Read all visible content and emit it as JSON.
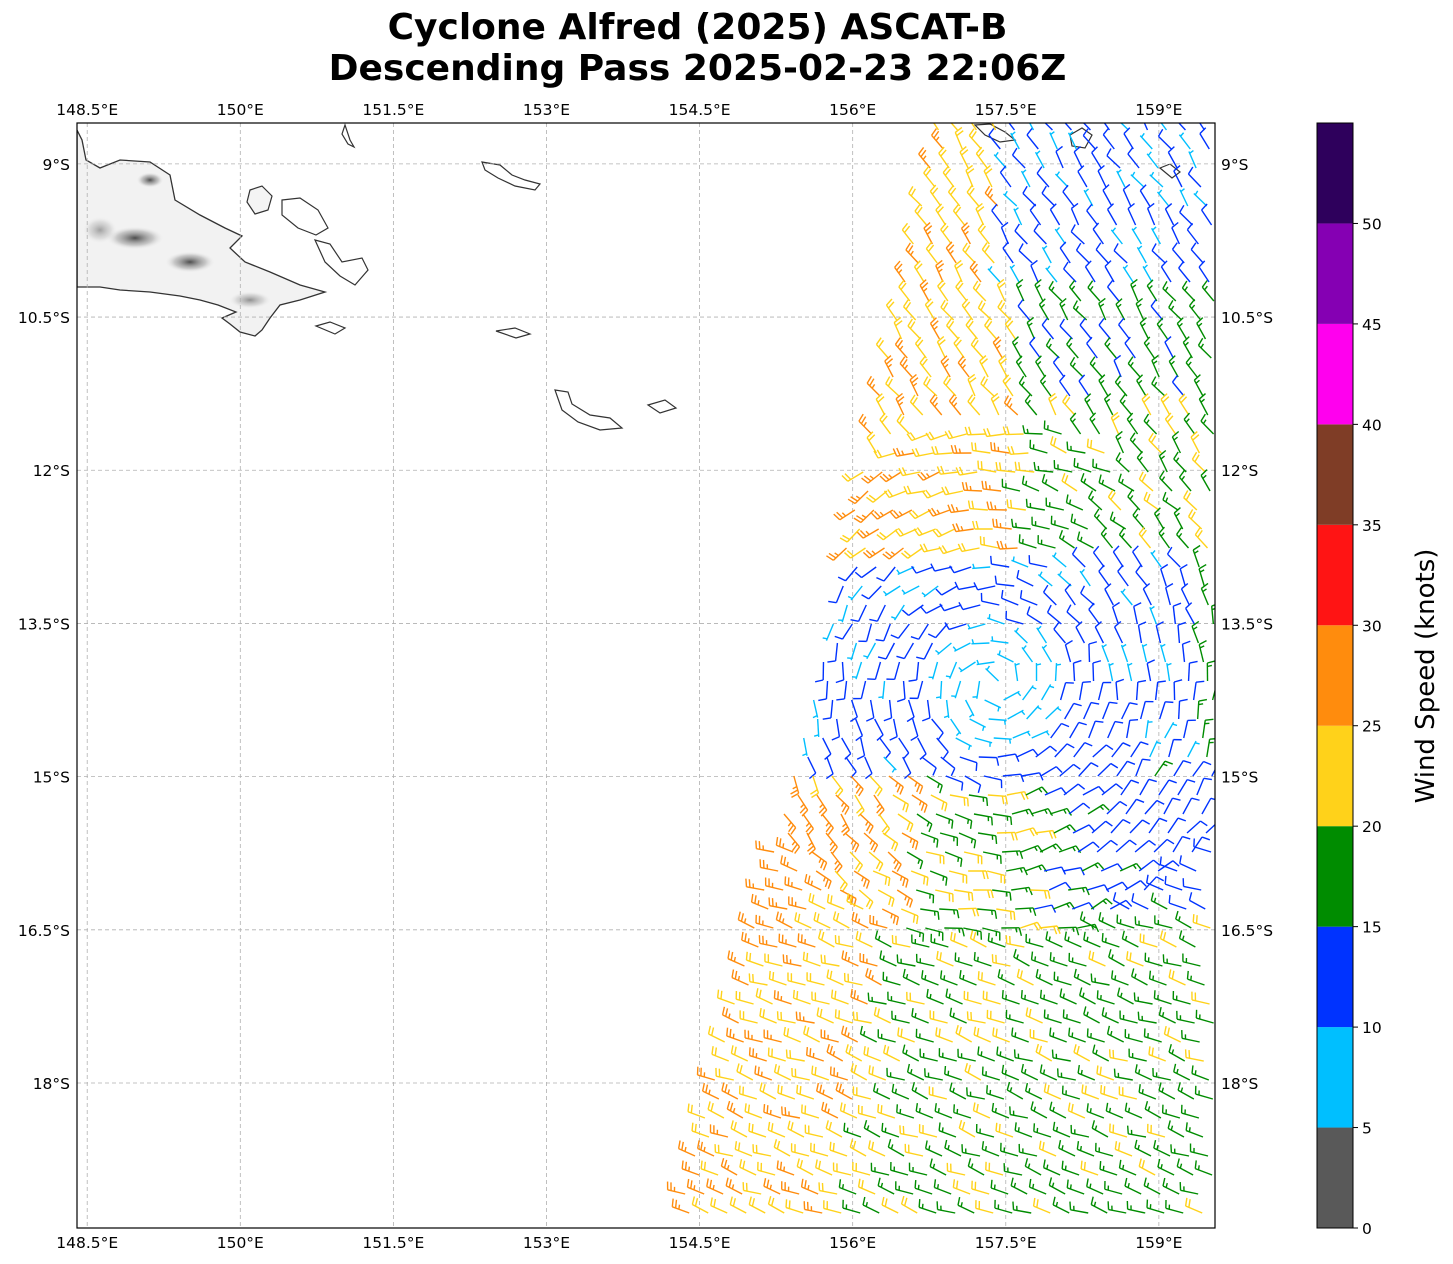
{
  "title": {
    "line1": "Cyclone Alfred (2025) ASCAT-B",
    "line2": "Descending Pass 2025-02-23 22:06Z"
  },
  "axes": {
    "lon_ticks": [
      "148.5°E",
      "150°E",
      "151.5°E",
      "153°E",
      "154.5°E",
      "156°E",
      "157.5°E",
      "159°E"
    ],
    "lat_ticks": [
      "9°S",
      "10.5°S",
      "12°S",
      "13.5°S",
      "15°S",
      "16.5°S",
      "18°S"
    ],
    "lon_range": [
      148.4,
      159.55
    ],
    "lat_range": [
      -19.42,
      -8.6
    ],
    "grid": true
  },
  "colorbar": {
    "label": "Wind Speed (knots)",
    "ticks": [
      "0",
      "5",
      "10",
      "15",
      "20",
      "25",
      "30",
      "35",
      "40",
      "45",
      "50"
    ],
    "bins": [
      {
        "min": 0,
        "max": 5,
        "color": "#595959"
      },
      {
        "min": 5,
        "max": 10,
        "color": "#00bfff"
      },
      {
        "min": 10,
        "max": 15,
        "color": "#0033ff"
      },
      {
        "min": 15,
        "max": 20,
        "color": "#008c00"
      },
      {
        "min": 20,
        "max": 25,
        "color": "#ffd21a"
      },
      {
        "min": 25,
        "max": 30,
        "color": "#ff8c0d"
      },
      {
        "min": 30,
        "max": 35,
        "color": "#ff1414"
      },
      {
        "min": 35,
        "max": 40,
        "color": "#7f3d26"
      },
      {
        "min": 40,
        "max": 45,
        "color": "#ff00ee"
      },
      {
        "min": 45,
        "max": 50,
        "color": "#8500b3"
      },
      {
        "min": 50,
        "max": 55,
        "color": "#2e005c"
      }
    ]
  },
  "chart_data": {
    "type": "scatter",
    "description": "ASCAT-B scatterometer wind barbs (speed in knots, color-coded by speed bin), swath across the eastern portion of the map",
    "swath_lon_range": [
      154.3,
      159.55
    ],
    "swath_lat_range": [
      -19.42,
      -8.6
    ],
    "circulation_center": {
      "lon": 157.4,
      "lat": -14.1
    },
    "regions": [
      {
        "area": "northern swath edge, near 157-159.5°E, 9-11°S",
        "speed_range_kt": [
          5,
          20
        ],
        "direction": "mixed NW/W"
      },
      {
        "area": "west of center, 155.5-157°E, 10.5-13°S",
        "speed_range_kt": [
          20,
          30
        ],
        "direction": "NW"
      },
      {
        "area": "near center, 156-158.5°E, 13-15°S",
        "speed_range_kt": [
          5,
          15
        ],
        "direction": "cyclonic"
      },
      {
        "area": "south-west, 154.3-157°E, 15-19.4°S",
        "speed_range_kt": [
          20,
          30
        ],
        "direction": "SE"
      },
      {
        "area": "south-east, 157-159.5°E, 15-19°S",
        "speed_range_kt": [
          10,
          20
        ],
        "direction": "SE"
      }
    ]
  }
}
